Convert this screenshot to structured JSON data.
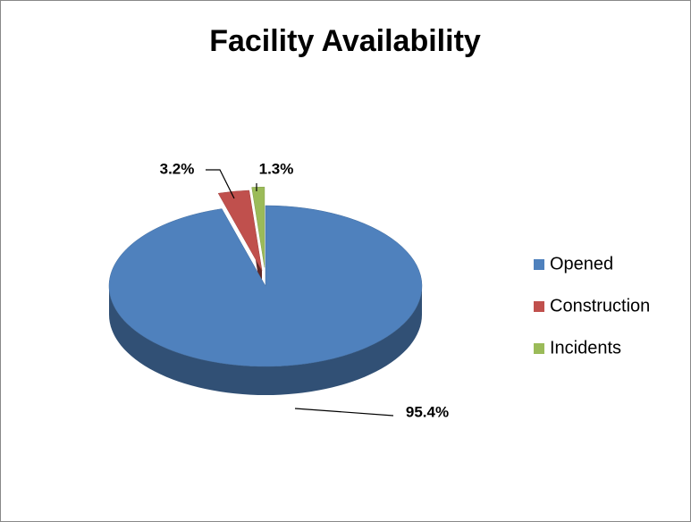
{
  "chart_data": {
    "type": "pie3d",
    "title": "Facility Availability",
    "categories": [
      "Opened",
      "Construction",
      "Incidents"
    ],
    "values": [
      95.4,
      3.2,
      1.3
    ],
    "value_labels": [
      "95.4%",
      "3.2%",
      "1.3%"
    ],
    "colors": [
      "#4f81bd",
      "#c0504d",
      "#9bbb59"
    ],
    "legend": "right"
  }
}
